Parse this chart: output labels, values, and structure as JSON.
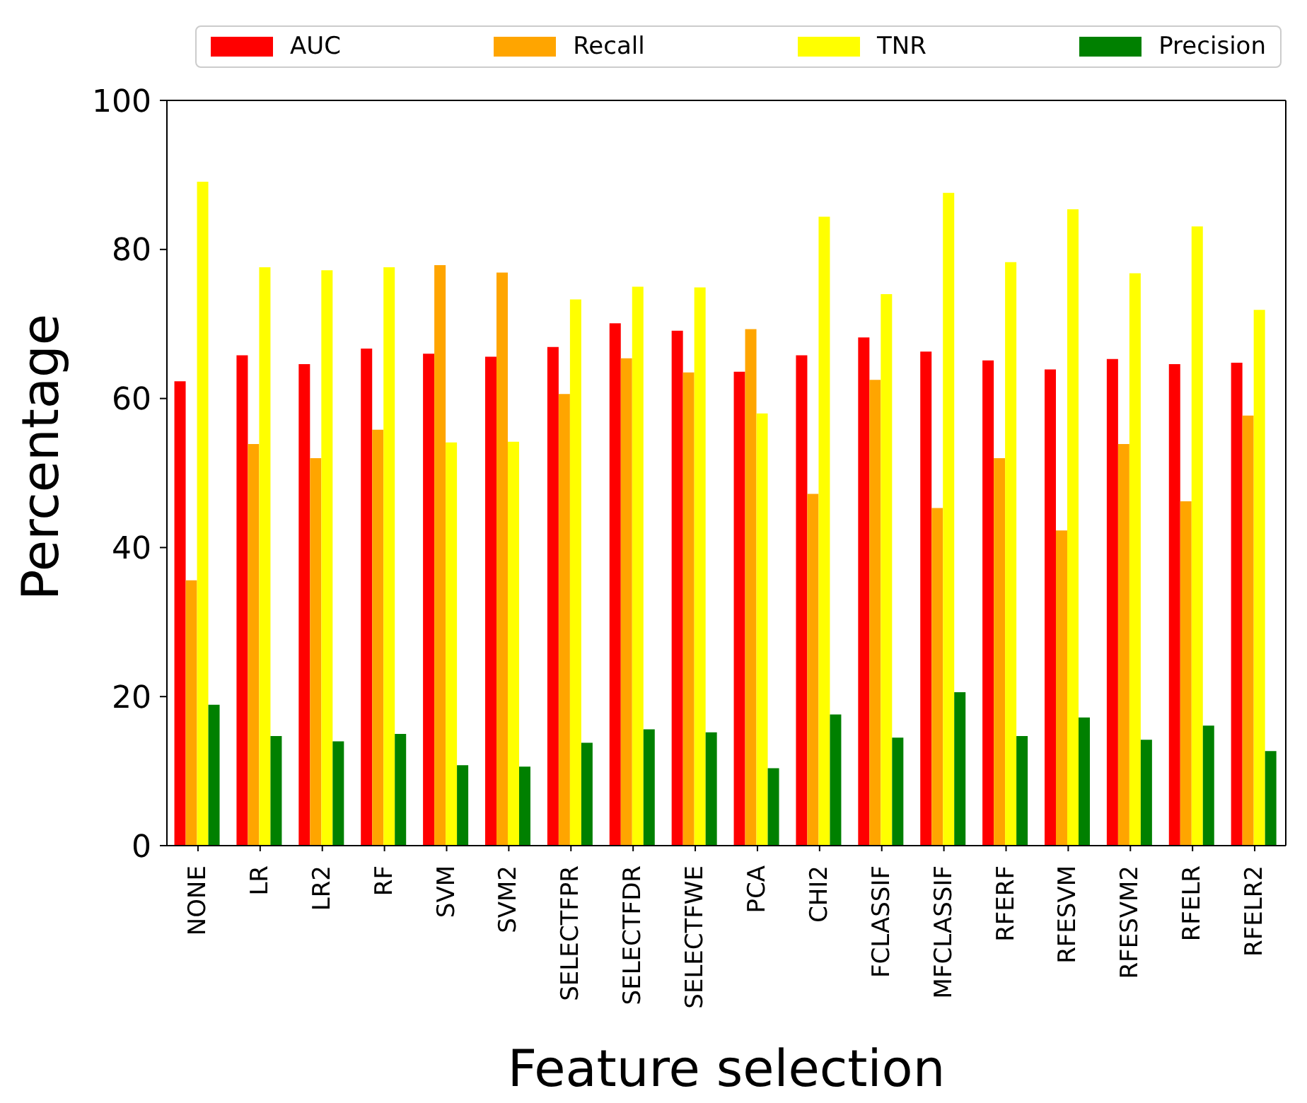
{
  "chart_data": {
    "type": "bar",
    "xlabel": "Feature selection",
    "ylabel": "Percentage",
    "categories": [
      "NONE",
      "LR",
      "LR2",
      "RF",
      "SVM",
      "SVM2",
      "SELECTFPR",
      "SELECTFDR",
      "SELECTFWE",
      "PCA",
      "CHI2",
      "FCLASSIF",
      "MFCLASSIF",
      "RFERF",
      "RFESVM",
      "RFESVM2",
      "RFELR",
      "RFELR2"
    ],
    "series": [
      {
        "name": "AUC",
        "color": "#ff0000",
        "values": [
          62.3,
          65.8,
          64.6,
          66.7,
          66.0,
          65.6,
          66.9,
          70.1,
          69.1,
          63.6,
          65.8,
          68.2,
          66.3,
          65.1,
          63.9,
          65.3,
          64.6,
          64.8
        ]
      },
      {
        "name": "Recall",
        "color": "#ffa500",
        "values": [
          35.6,
          53.9,
          52.0,
          55.8,
          77.9,
          76.9,
          60.6,
          65.4,
          63.5,
          69.3,
          47.2,
          62.5,
          45.3,
          52.0,
          42.3,
          53.9,
          46.2,
          57.7
        ]
      },
      {
        "name": "TNR",
        "color": "#ffff00",
        "values": [
          89.1,
          77.6,
          77.2,
          77.6,
          54.1,
          54.2,
          73.3,
          75.0,
          74.9,
          58.0,
          84.4,
          74.0,
          87.6,
          78.3,
          85.4,
          76.8,
          83.1,
          71.9
        ]
      },
      {
        "name": "Precision",
        "color": "#008000",
        "values": [
          18.9,
          14.7,
          14.0,
          15.0,
          10.8,
          10.6,
          13.8,
          15.6,
          15.2,
          10.4,
          17.6,
          14.5,
          20.6,
          14.7,
          17.2,
          14.2,
          16.1,
          12.7
        ]
      }
    ],
    "ylim": [
      0,
      100
    ],
    "yticks": [
      0,
      20,
      40,
      60,
      80,
      100
    ],
    "grid": false,
    "legend": "top"
  }
}
